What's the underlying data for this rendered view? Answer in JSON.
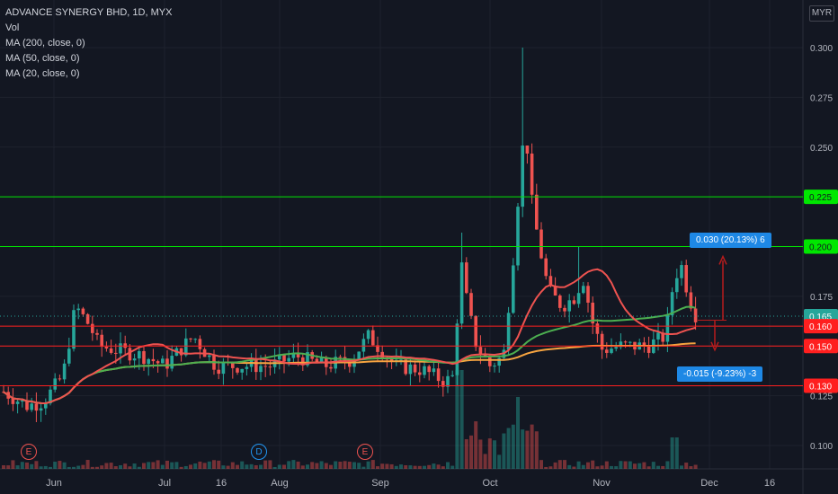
{
  "header": {
    "title": "ADVANCE SYNERGY BHD, 1D, MYX",
    "indicators": [
      "Vol",
      "MA (200, close, 0)",
      "MA (50, close, 0)",
      "MA (20, close, 0)"
    ]
  },
  "currency": "MYR",
  "events": [
    {
      "label": "E",
      "kind": "e",
      "date_label": "May 27"
    },
    {
      "label": "D",
      "kind": "d",
      "date_label": "Aug 1"
    },
    {
      "label": "E",
      "kind": "e",
      "date_label": "Aug 26"
    }
  ],
  "measure_up": "0.030 (20.13%) 6",
  "measure_down": "-0.015 (-9.23%) -3",
  "colors": {
    "bg": "#131722",
    "up": "#26a69a",
    "down": "#ef5350",
    "grid": "#1e222d",
    "ma20": "#ef5350",
    "ma50": "#4caf50",
    "ma200": "#f7a440",
    "green_level": "#00e600",
    "red_level": "#ff1f1f"
  },
  "chart_data": {
    "type": "candlestick",
    "symbol": "ADVANCE SYNERGY BHD",
    "interval": "1D",
    "currency": "MYR",
    "ylim": [
      0.088,
      0.318
    ],
    "y_ticks": [
      0.1,
      0.125,
      0.15,
      0.175,
      0.2,
      0.225,
      0.25,
      0.275,
      0.3
    ],
    "x_ticks": [
      "Jun",
      "Jul",
      "16",
      "Aug",
      "Sep",
      "Oct",
      "Nov",
      "Dec",
      "16"
    ],
    "horizontal_levels": [
      {
        "price": 0.225,
        "color": "green"
      },
      {
        "price": 0.2,
        "color": "green"
      },
      {
        "price": 0.16,
        "color": "red"
      },
      {
        "price": 0.15,
        "color": "red"
      },
      {
        "price": 0.13,
        "color": "red"
      }
    ],
    "last_price": 0.165,
    "price_labels": [
      "0.225",
      "0.200",
      "0.165",
      "0.160",
      "0.150",
      "0.130"
    ],
    "candles_summary": [
      {
        "period": "late May",
        "range": [
          0.115,
          0.13
        ]
      },
      {
        "period": "early Jun",
        "range": [
          0.13,
          0.175
        ]
      },
      {
        "period": "Jun-Sep",
        "range": [
          0.13,
          0.16
        ]
      },
      {
        "period": "late Sep spike",
        "range": [
          0.125,
          0.205
        ]
      },
      {
        "period": "Oct peak",
        "high": 0.3,
        "close_high": 0.265
      },
      {
        "period": "Nov",
        "range": [
          0.14,
          0.2
        ]
      },
      {
        "period": "late Nov last",
        "close": 0.165
      }
    ],
    "series": [
      {
        "name": "MA (200, close, 0)"
      },
      {
        "name": "MA (50, close, 0)"
      },
      {
        "name": "MA (20, close, 0)"
      },
      {
        "name": "Vol"
      }
    ]
  }
}
